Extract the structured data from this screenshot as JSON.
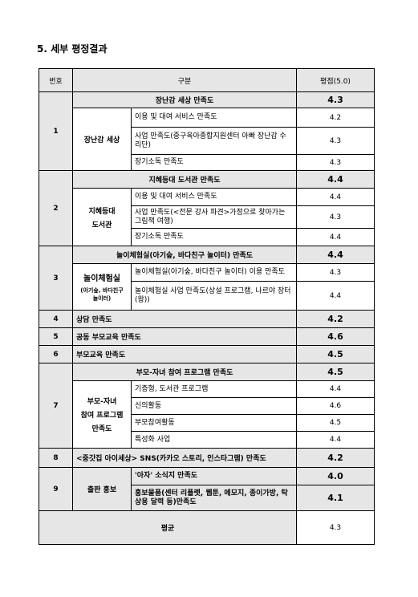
{
  "heading": "5. 세부 평정결과",
  "columns": {
    "num": "번호",
    "category": "구분",
    "score": "평점(5.0)"
  },
  "sections": {
    "s1": {
      "num": "1",
      "title": "장난감 세상 만족도",
      "title_score": "4.3",
      "group": "장난감 세상",
      "items": [
        {
          "label": "이용 및 대여 서비스 만족도",
          "score": "4.2"
        },
        {
          "label": "사업 만족도(중구육아종합지원센터 아빠 장난감 수리단)",
          "score": "4.3"
        },
        {
          "label": "장기소독 만족도",
          "score": "4.3"
        }
      ]
    },
    "s2": {
      "num": "2",
      "title": "지혜등대 도서관 만족도",
      "title_score": "4.4",
      "group_line1": "지혜등대",
      "group_line2": "도서관",
      "items": [
        {
          "label": "이용 및 대여 서비스 만족도",
          "score": "4.4"
        },
        {
          "label": "사업 만족도(<전문 강사 파견>가정으로 찾아가는 그림책 여행)",
          "score": "4.3"
        },
        {
          "label": "장기소독 만족도",
          "score": "4.4"
        }
      ]
    },
    "s3": {
      "num": "3",
      "title": "놀이체험실(아기숲, 바다친구 놀이터) 만족도",
      "title_score": "4.4",
      "group_line1": "놀이체험실",
      "group_line2": "(아기숲, 바다친구",
      "group_line3": "놀이터)",
      "items": [
        {
          "label": "놀이체험실(아기숲, 바다친구 놀이터) 이용 만족도",
          "score": "4.3"
        },
        {
          "label": "놀이체험실 사업 만족도(상설 프로그램, 나르야 장터(왕))",
          "score": "4.4"
        }
      ]
    },
    "s4": {
      "num": "4",
      "title": "상담 만족도",
      "score": "4.2"
    },
    "s5": {
      "num": "5",
      "title": "공동 부모교육 만족도",
      "score": "4.6"
    },
    "s6": {
      "num": "6",
      "title": "부모교육 만족도",
      "score": "4.5"
    },
    "s7": {
      "num": "7",
      "title": "부모-자녀 참여 프로그램 만족도",
      "title_score": "4.5",
      "group_line1": "부모-자녀",
      "group_line2": "참여 프로그램",
      "group_line3": "만족도",
      "items": [
        {
          "label": "기증형, 도서관 프로그램",
          "score": "4.4"
        },
        {
          "label": "신의활동",
          "score": "4.6"
        },
        {
          "label": "부모참여활동",
          "score": "4.5"
        },
        {
          "label": "특성화 사업",
          "score": "4.4"
        }
      ]
    },
    "s8": {
      "num": "8",
      "title": "<중갓집 아이세상> SNS(카카오 스토리, 인스타그램) 만족도",
      "score": "4.2"
    },
    "s9": {
      "num": "9",
      "group": "출판 홍보",
      "items": [
        {
          "label": "'아자' 소식지 만족도",
          "score": "4.0"
        },
        {
          "label": "홍보물품(센터 리플렛, 웹툰, 메모지, 종이가방, 탁상용 달력 등)만족도",
          "score": "4.1"
        }
      ]
    },
    "average": {
      "label": "평균",
      "score": "4.3"
    }
  }
}
